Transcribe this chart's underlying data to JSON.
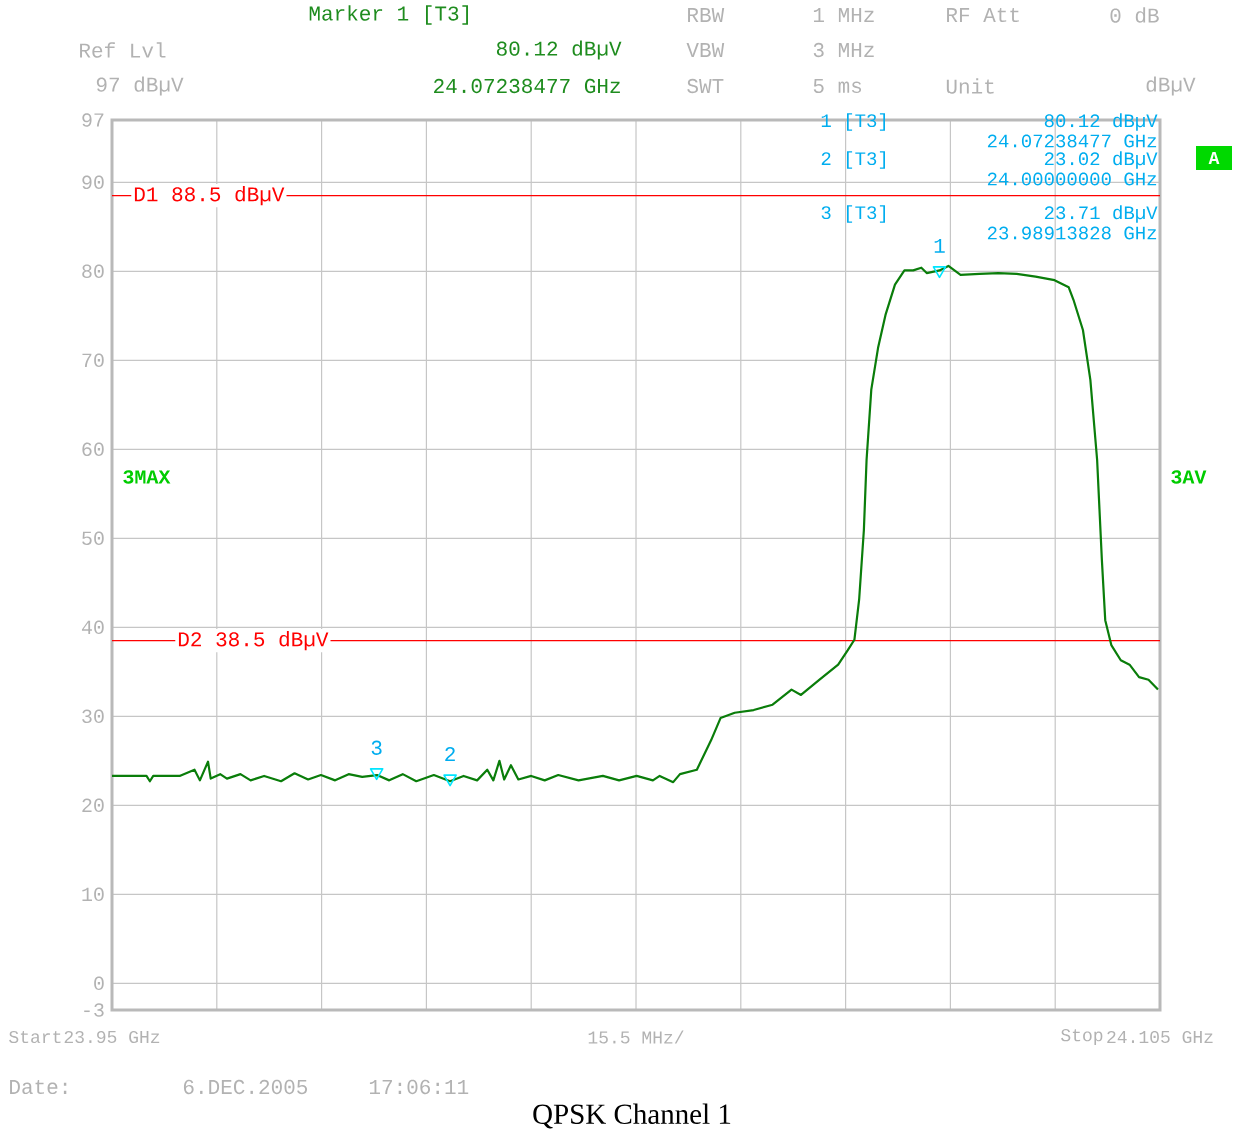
{
  "chart_data": {
    "type": "line",
    "title": "QPSK Channel 1",
    "xlabel": "15.5 MHz/",
    "xlim": [
      23.95,
      24.105
    ],
    "xticks": [
      {
        "value": 23.95,
        "label": "23.95 GHz"
      },
      {
        "value": 23.9655,
        "label": null
      },
      {
        "value": 23.981,
        "label": null
      },
      {
        "value": 23.9965,
        "label": null
      },
      {
        "value": 24.012,
        "label": null
      },
      {
        "value": 24.0275,
        "label": null
      },
      {
        "value": 24.043,
        "label": null
      },
      {
        "value": 24.0585,
        "label": null
      },
      {
        "value": 24.074,
        "label": null
      },
      {
        "value": 24.0895,
        "label": null
      },
      {
        "value": 24.105,
        "label": "24.105 GHz"
      }
    ],
    "ylim": [
      -3,
      97
    ],
    "yticks": [
      -3,
      0,
      10,
      20,
      30,
      40,
      50,
      60,
      70,
      80,
      90,
      97
    ],
    "grid": true,
    "series": [
      {
        "color": "#0a7d0a",
        "x": [
          23.95,
          23.9551,
          23.9556,
          23.9561,
          23.96,
          23.9622,
          23.963,
          23.9642,
          23.9646,
          23.966,
          23.967,
          23.969,
          23.9705,
          23.9725,
          23.975,
          23.977,
          23.979,
          23.9809,
          23.983,
          23.985,
          23.987,
          23.9892,
          23.991,
          23.993,
          23.995,
          23.9976,
          24.0,
          24.002,
          24.004,
          24.0055,
          24.0064,
          24.0073,
          24.008,
          24.009,
          24.0101,
          24.012,
          24.014,
          24.016,
          24.019,
          24.0226,
          24.025,
          24.0276,
          24.03,
          24.031,
          24.033,
          24.034,
          24.0365,
          24.0386,
          24.04,
          24.0421,
          24.0449,
          24.0477,
          24.0505,
          24.0519,
          24.0546,
          24.0574,
          24.0588,
          24.0598,
          24.0605,
          24.0612,
          24.0616,
          24.0623,
          24.0633,
          24.0644,
          24.0658,
          24.0672,
          24.0685,
          24.0697,
          24.0705,
          24.0724,
          24.0737,
          24.0755,
          24.0783,
          24.0811,
          24.0838,
          24.0866,
          24.0894,
          24.0915,
          24.0922,
          24.0936,
          24.0947,
          24.0957,
          24.0964,
          24.0969,
          24.0978,
          24.0992,
          24.1005,
          24.1019,
          24.1033,
          24.1047
        ],
        "values": [
          23.3,
          23.3,
          22.7,
          23.3,
          23.3,
          24.0,
          22.8,
          24.9,
          23.0,
          23.5,
          23.0,
          23.5,
          22.8,
          23.3,
          22.7,
          23.6,
          22.9,
          23.4,
          22.8,
          23.5,
          23.2,
          23.4,
          22.8,
          23.5,
          22.7,
          23.4,
          22.7,
          23.3,
          22.8,
          24.0,
          22.8,
          25.0,
          22.9,
          24.5,
          22.9,
          23.3,
          22.8,
          23.4,
          22.8,
          23.3,
          22.8,
          23.3,
          22.8,
          23.3,
          22.6,
          23.5,
          24.0,
          27.3,
          29.8,
          30.4,
          30.7,
          31.3,
          33.0,
          32.4,
          34.1,
          35.8,
          37.4,
          38.6,
          43.1,
          50.9,
          58.8,
          66.7,
          71.4,
          75.1,
          78.5,
          80.1,
          80.1,
          80.4,
          79.8,
          80.1,
          80.6,
          79.6,
          79.7,
          79.8,
          79.7,
          79.4,
          79.0,
          78.2,
          76.8,
          73.4,
          67.8,
          58.8,
          47.6,
          40.8,
          38.0,
          36.3,
          35.8,
          34.4,
          34.1,
          33.0
        ]
      },
      {
        "type": "scatter",
        "marker": "triangle",
        "color": "#00e5ff",
        "x": [
          24.07238477,
          24.0,
          23.98913828
        ],
        "values": [
          80.1,
          23.0,
          23.7
        ]
      }
    ],
    "marker": "none",
    "ref_lines": [
      {
        "axis": "y",
        "value": 88.5,
        "label": "D1 88.5 dBµV",
        "color": "#ff0000"
      },
      {
        "axis": "y",
        "value": 38.5,
        "label": "D2 38.5 dBµV",
        "color": "#ff0000"
      }
    ],
    "annotations": [
      "Marker 1 [T3]",
      "80.12 dBµV",
      "24.07238477 GHz",
      "Ref Lvl",
      "97 dBµV",
      "RBW",
      "1 MHz",
      "VBW",
      "3 MHz",
      "SWT",
      "5 ms",
      "RF Att",
      "0 dB",
      "Unit",
      "dBµV",
      "A",
      "3MAX",
      "3AV",
      "Date:",
      "6.DEC.2005",
      "17:06:11",
      "1 [T3]",
      "80.12 dBµV",
      "24.07238477 GHz",
      "2 [T3]",
      "23.02 dBµV",
      "24.00000000 GHz",
      "3 [T3]",
      "23.71 dBµV",
      "23.98913828 GHz",
      "Start",
      "Stop",
      {
        "text": "1",
        "x": 24.07238477,
        "y": 80.12
      },
      {
        "text": "2",
        "x": 24.0,
        "y": 23.02
      },
      {
        "text": "3",
        "x": 23.98913828,
        "y": 23.71
      }
    ]
  }
}
